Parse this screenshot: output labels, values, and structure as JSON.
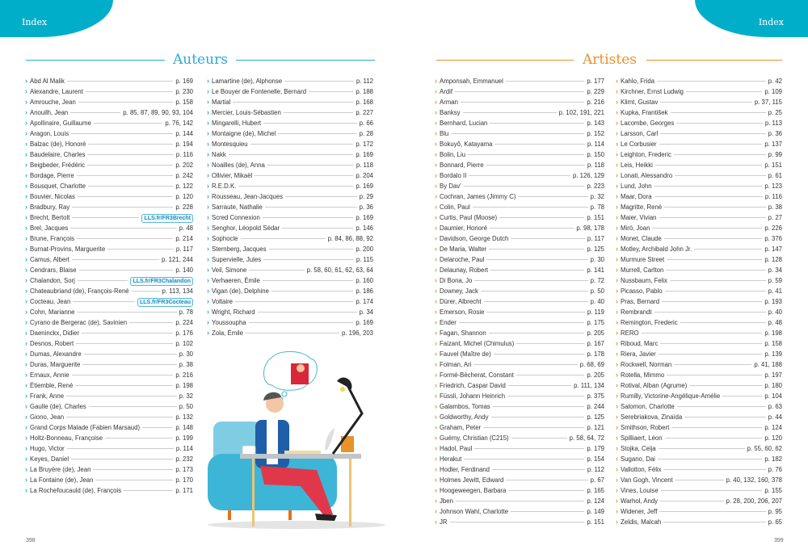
{
  "header": {
    "left_label": "Index",
    "right_label": "Index"
  },
  "colors": {
    "teal": "#00aec9",
    "authors_accent": "#29a9d8",
    "artists_accent": "#e8922a"
  },
  "authors": {
    "title": "Auteurs",
    "entries": [
      {
        "name": "Abd Al Malik",
        "ref": "p. 169"
      },
      {
        "name": "Alexandre, Laurent",
        "ref": "p. 230"
      },
      {
        "name": "Amrouche, Jean",
        "ref": "p. 158"
      },
      {
        "name": "Anouilh, Jean",
        "ref": "p. 85, 87, 89, 90, 93, 104"
      },
      {
        "name": "Apollinaire, Guillaume",
        "ref": "p. 76, 142"
      },
      {
        "name": "Aragon, Louis",
        "ref": "p. 144"
      },
      {
        "name": "Balzac (de), Honoré",
        "ref": "p. 194"
      },
      {
        "name": "Baudelaire, Charles",
        "ref": "p. 116"
      },
      {
        "name": "Beigbeder, Frédéric",
        "ref": "p. 202"
      },
      {
        "name": "Bordage, Pierre",
        "ref": "p. 242"
      },
      {
        "name": "Bousquet, Charlotte",
        "ref": "p. 122"
      },
      {
        "name": "Bouvier, Nicolas",
        "ref": "p. 120"
      },
      {
        "name": "Bradbury, Ray",
        "ref": "p. 228"
      },
      {
        "name": "Brecht, Bertolt",
        "ref": "LLS.fr/FR3Brecht",
        "link": true
      },
      {
        "name": "Brel, Jacques",
        "ref": "p. 48"
      },
      {
        "name": "Brune, François",
        "ref": "p. 214"
      },
      {
        "name": "Burnat-Provins, Marguerite",
        "ref": "p. 117"
      },
      {
        "name": "Camus, Albert",
        "ref": "p. 121, 244"
      },
      {
        "name": "Cendrars, Blaise",
        "ref": "p. 140"
      },
      {
        "name": "Chalandon, Sorj",
        "ref": "LLS.fr/FR3Chalandon",
        "link": true
      },
      {
        "name": "Chateaubriand (de), François-René",
        "ref": "p. 113, 134"
      },
      {
        "name": "Cocteau, Jean",
        "ref": "LLS.fr/FR3Cocteau",
        "link": true
      },
      {
        "name": "Cohn, Marianne",
        "ref": "p. 78"
      },
      {
        "name": "Cyrano de Bergerac (de), Savinien",
        "ref": "p. 224"
      },
      {
        "name": "Daeninckx, Didier",
        "ref": "p. 176"
      },
      {
        "name": "Desnos, Robert",
        "ref": "p. 102"
      },
      {
        "name": "Dumas, Alexandre",
        "ref": "p. 30"
      },
      {
        "name": "Duras, Marguerite",
        "ref": "p. 38"
      },
      {
        "name": "Ernaux, Annie",
        "ref": "p. 216"
      },
      {
        "name": "Étiemble, René",
        "ref": "p. 198"
      },
      {
        "name": "Frank, Anne",
        "ref": "p. 32"
      },
      {
        "name": "Gaulle (de), Charles",
        "ref": "p. 50"
      },
      {
        "name": "Giono, Jean",
        "ref": "p. 132"
      },
      {
        "name": "Grand Corps Malade (Fabien Marsaud)",
        "ref": "p. 148"
      },
      {
        "name": "Holtz-Bonneau, Françoise",
        "ref": "p. 199"
      },
      {
        "name": "Hugo, Victor",
        "ref": "p. 114"
      },
      {
        "name": "Keyes, Daniel",
        "ref": "p. 232"
      },
      {
        "name": "La Bruyère (de), Jean",
        "ref": "p. 173"
      },
      {
        "name": "La Fontaine (de), Jean",
        "ref": "p. 170"
      },
      {
        "name": "La Rochefoucauld (de), François",
        "ref": "p. 171"
      },
      {
        "name": "Lamartine (de), Alphonse",
        "ref": "p. 112"
      },
      {
        "name": "Le Bouyer de Fontenelle, Bernard",
        "ref": "p. 188"
      },
      {
        "name": "Martial",
        "ref": "p. 168"
      },
      {
        "name": "Mercier, Louis-Sébastien",
        "ref": "p. 227"
      },
      {
        "name": "Mingarelli, Hubert",
        "ref": "p. 66"
      },
      {
        "name": "Montaigne (de), Michel",
        "ref": "p. 28"
      },
      {
        "name": "Montesquieu",
        "ref": "p. 172"
      },
      {
        "name": "Nakk",
        "ref": "p. 169"
      },
      {
        "name": "Noailles (de), Anna",
        "ref": "p. 118"
      },
      {
        "name": "Ollivier, Mikaël",
        "ref": "p. 204"
      },
      {
        "name": "R.E.D.K.",
        "ref": "p. 169"
      },
      {
        "name": "Rousseau, Jean-Jacques",
        "ref": "p. 29"
      },
      {
        "name": "Sarraute, Nathalie",
        "ref": "p. 36"
      },
      {
        "name": "Scred Connexion",
        "ref": "p. 169"
      },
      {
        "name": "Senghor, Léopold Sédar",
        "ref": "p. 146"
      },
      {
        "name": "Sophocle",
        "ref": "p. 84, 86, 88, 92"
      },
      {
        "name": "Sternberg, Jacques",
        "ref": "p. 200"
      },
      {
        "name": "Supervielle, Jules",
        "ref": "p. 115"
      },
      {
        "name": "Veil, Simone",
        "ref": "p. 58, 60, 61, 62, 63, 64"
      },
      {
        "name": "Verhaeren, Émile",
        "ref": "p. 160"
      },
      {
        "name": "Vigan (de), Delphine",
        "ref": "p. 186"
      },
      {
        "name": "Voltaire",
        "ref": "p. 174"
      },
      {
        "name": "Wright, Richard",
        "ref": "p. 34"
      },
      {
        "name": "Youssoupha",
        "ref": "p. 169"
      },
      {
        "name": "Zola, Émile",
        "ref": "p. 196, 203"
      }
    ]
  },
  "artists": {
    "title": "Artistes",
    "entries": [
      {
        "name": "Amponsah, Emmanuel",
        "ref": "p. 177"
      },
      {
        "name": "Ardif",
        "ref": "p. 229"
      },
      {
        "name": "Arman",
        "ref": "p. 216"
      },
      {
        "name": "Banksy",
        "ref": "p. 102, 191, 221"
      },
      {
        "name": "Bernhard, Lucian",
        "ref": "p. 143"
      },
      {
        "name": "Blu",
        "ref": "p. 152"
      },
      {
        "name": "Bokuyô, Katayama",
        "ref": "p. 114"
      },
      {
        "name": "Bolin, Liu",
        "ref": "p. 150"
      },
      {
        "name": "Bonnard, Pierre",
        "ref": "p. 118"
      },
      {
        "name": "Bordalo II",
        "ref": "p. 126, 129"
      },
      {
        "name": "By Dav'",
        "ref": "p. 223"
      },
      {
        "name": "Cochran, James (Jimmy C)",
        "ref": "p. 32"
      },
      {
        "name": "Colin, Paul",
        "ref": "p. 78"
      },
      {
        "name": "Curtis, Paul (Moose)",
        "ref": "p. 151"
      },
      {
        "name": "Daumier, Honoré",
        "ref": "p. 98, 178"
      },
      {
        "name": "Davidson, George Dutch",
        "ref": "p. 117"
      },
      {
        "name": "De Maria, Walter",
        "ref": "p. 125"
      },
      {
        "name": "Delaroche, Paul",
        "ref": "p. 30"
      },
      {
        "name": "Delaunay, Robert",
        "ref": "p. 141"
      },
      {
        "name": "Di Bona, Jo",
        "ref": "p. 72"
      },
      {
        "name": "Downey, Jack",
        "ref": "p. 50"
      },
      {
        "name": "Dürer, Albrecht",
        "ref": "p. 40"
      },
      {
        "name": "Emerson, Rosie",
        "ref": "p. 119"
      },
      {
        "name": "Ender",
        "ref": "p. 175"
      },
      {
        "name": "Fagan, Shannon",
        "ref": "p. 205"
      },
      {
        "name": "Faizant, Michel (Chimulus)",
        "ref": "p. 167"
      },
      {
        "name": "Fauvel (Maître de)",
        "ref": "p. 178"
      },
      {
        "name": "Folman, Ari",
        "ref": "p. 68, 69"
      },
      {
        "name": "Formé-Bècherat, Constant",
        "ref": "p. 205"
      },
      {
        "name": "Friedrich, Caspar David",
        "ref": "p. 111, 134"
      },
      {
        "name": "Füssli, Johann Heinrich",
        "ref": "p. 375"
      },
      {
        "name": "Galambos, Tomas",
        "ref": "p. 244"
      },
      {
        "name": "Goldworthy, Andy",
        "ref": "p. 125"
      },
      {
        "name": "Graham, Peter",
        "ref": "p. 121"
      },
      {
        "name": "Guémy, Christian (C215)",
        "ref": "p. 58, 64, 72"
      },
      {
        "name": "Hadol, Paul",
        "ref": "p. 179"
      },
      {
        "name": "Herakut",
        "ref": "p. 154"
      },
      {
        "name": "Hodler, Ferdinand",
        "ref": "p. 112"
      },
      {
        "name": "Holmes Jewitt, Edward",
        "ref": "p. 67"
      },
      {
        "name": "Hoogeweegen, Barbara",
        "ref": "p. 165"
      },
      {
        "name": "Jben",
        "ref": "p. 124"
      },
      {
        "name": "Johnson Wahl, Charlotte",
        "ref": "p. 149"
      },
      {
        "name": "JR",
        "ref": "p. 151"
      },
      {
        "name": "Kahlo, Frida",
        "ref": "p. 42"
      },
      {
        "name": "Kirchner, Ernst Ludwig",
        "ref": "p. 109"
      },
      {
        "name": "Klimt, Gustav",
        "ref": "p. 37, 115"
      },
      {
        "name": "Kupka, František",
        "ref": "p. 25"
      },
      {
        "name": "Lacombe, Georges",
        "ref": "p. 113"
      },
      {
        "name": "Larsson, Carl",
        "ref": "p. 36"
      },
      {
        "name": "Le Corbusier",
        "ref": "p. 137"
      },
      {
        "name": "Leighton, Frederic",
        "ref": "p. 99"
      },
      {
        "name": "Leis, Heikki",
        "ref": "p. 151"
      },
      {
        "name": "Lonati, Alessandro",
        "ref": "p. 61"
      },
      {
        "name": "Lund, John",
        "ref": "p. 123"
      },
      {
        "name": "Maar, Dora",
        "ref": "p. 116"
      },
      {
        "name": "Magritte, René",
        "ref": "p. 38"
      },
      {
        "name": "Maier, Vivian",
        "ref": "p. 27"
      },
      {
        "name": "Miró, Joan",
        "ref": "p. 226"
      },
      {
        "name": "Monet, Claude",
        "ref": "p. 376"
      },
      {
        "name": "Motley, Archibald John Jr.",
        "ref": "p. 147"
      },
      {
        "name": "Murmure Street",
        "ref": "p. 128"
      },
      {
        "name": "Murrell, Carlton",
        "ref": "p. 34"
      },
      {
        "name": "Nussbaum, Felix",
        "ref": "p. 59"
      },
      {
        "name": "Picasso, Pablo",
        "ref": "p. 41"
      },
      {
        "name": "Pras, Bernard",
        "ref": "p. 193"
      },
      {
        "name": "Rembrandt",
        "ref": "p. 40"
      },
      {
        "name": "Remington, Frederic",
        "ref": "p. 48"
      },
      {
        "name": "RERO",
        "ref": "p. 198"
      },
      {
        "name": "Riboud, Marc",
        "ref": "p. 158"
      },
      {
        "name": "Riera, Javier",
        "ref": "p. 139"
      },
      {
        "name": "Rockwell, Norman",
        "ref": "p. 41, 188"
      },
      {
        "name": "Rotella, Mimmo",
        "ref": "p. 197"
      },
      {
        "name": "Rotival, Alban (Agrume)",
        "ref": "p. 180"
      },
      {
        "name": "Rumilly, Victorine-Angélique-Amélie",
        "ref": "p. 104"
      },
      {
        "name": "Salomon, Charlotte",
        "ref": "p. 63"
      },
      {
        "name": "Serebriakova, Zinaïda",
        "ref": "p. 44"
      },
      {
        "name": "Smithson, Robert",
        "ref": "p. 124"
      },
      {
        "name": "Spilliaert, Léon",
        "ref": "p. 120"
      },
      {
        "name": "Stojka, Ceija",
        "ref": "p. 55, 60, 62"
      },
      {
        "name": "Sugano, Dai",
        "ref": "p. 182"
      },
      {
        "name": "Vallotton, Félix",
        "ref": "p. 76"
      },
      {
        "name": "Van Gogh, Vincent",
        "ref": "p. 40, 132, 160, 378"
      },
      {
        "name": "Vines, Louise",
        "ref": "p. 155"
      },
      {
        "name": "Warhol, Andy",
        "ref": "p. 28, 200, 206, 207"
      },
      {
        "name": "Widener, Jeff",
        "ref": "p. 95"
      },
      {
        "name": "Zeldis, Malcah",
        "ref": "p. 65"
      }
    ]
  },
  "footer": {
    "left_page": "398",
    "right_page": "399"
  }
}
